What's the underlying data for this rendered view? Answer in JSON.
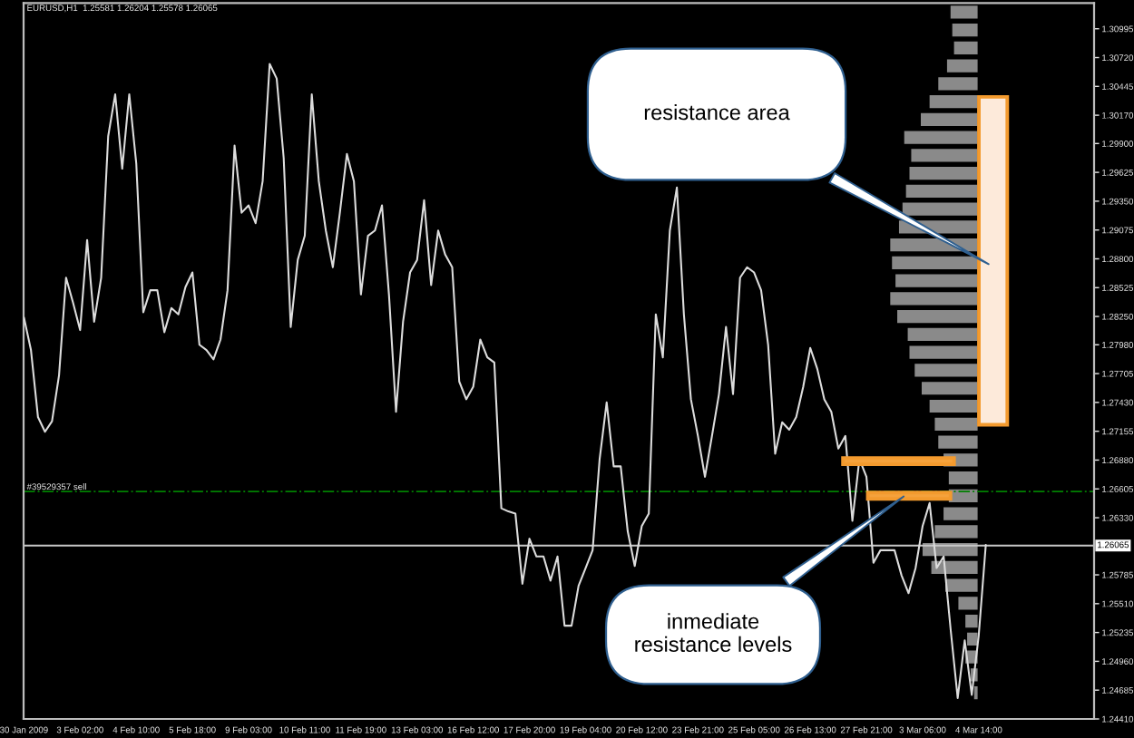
{
  "chart_data": {
    "type": "line",
    "title": "EURUSD,H1  1.25581 1.26204 1.25578 1.26065",
    "categories": [
      "30 Jan 2009",
      null,
      null,
      null,
      null,
      null,
      null,
      null,
      "3 Feb 02:00",
      null,
      null,
      null,
      null,
      null,
      null,
      null,
      "4 Feb 10:00",
      null,
      null,
      null,
      null,
      null,
      null,
      null,
      "5 Feb 18:00",
      null,
      null,
      null,
      null,
      null,
      null,
      null,
      "9 Feb 03:00",
      null,
      null,
      null,
      null,
      null,
      null,
      null,
      "10 Feb 11:00",
      null,
      null,
      null,
      null,
      null,
      null,
      null,
      "11 Feb 19:00",
      null,
      null,
      null,
      null,
      null,
      null,
      null,
      "13 Feb 03:00",
      null,
      null,
      null,
      null,
      null,
      null,
      null,
      "16 Feb 12:00",
      null,
      null,
      null,
      null,
      null,
      null,
      null,
      "17 Feb 20:00",
      null,
      null,
      null,
      null,
      null,
      null,
      null,
      "19 Feb 04:00",
      null,
      null,
      null,
      null,
      null,
      null,
      null,
      "20 Feb 12:00",
      null,
      null,
      null,
      null,
      null,
      null,
      null,
      "23 Feb 21:00",
      null,
      null,
      null,
      null,
      null,
      null,
      null,
      "25 Feb 05:00",
      null,
      null,
      null,
      null,
      null,
      null,
      null,
      "26 Feb 13:00",
      null,
      null,
      null,
      null,
      null,
      null,
      null,
      "27 Feb 21:00",
      null,
      null,
      null,
      null,
      null,
      null,
      null,
      "3 Mar 06:00",
      null,
      null,
      null,
      null,
      null,
      null,
      null,
      "4 Mar 14:00",
      null
    ],
    "series": [
      {
        "color": "#dcdcdc",
        "values": [
          1.2824,
          1.2793,
          1.2729,
          1.2715,
          1.2725,
          1.2769,
          1.2862,
          1.2838,
          1.2812,
          1.2898,
          1.282,
          1.2862,
          1.2997,
          1.3037,
          1.2966,
          1.3037,
          1.2971,
          1.2829,
          1.285,
          1.285,
          1.281,
          1.2833,
          1.2827,
          1.2853,
          1.2867,
          1.2798,
          1.2793,
          1.2784,
          1.2803,
          1.285,
          1.2988,
          1.2924,
          1.2931,
          1.2914,
          1.2954,
          1.3066,
          1.3052,
          1.2976,
          1.2815,
          1.2879,
          1.2902,
          1.3037,
          1.2954,
          1.2907,
          1.2872,
          1.2924,
          1.298,
          1.2954,
          1.2846,
          1.2902,
          1.2907,
          1.2931,
          1.2845,
          1.2734,
          1.282,
          1.2867,
          1.2879,
          1.2936,
          1.2855,
          1.2907,
          1.2884,
          1.2872,
          1.2763,
          1.2746,
          1.2758,
          1.2803,
          1.2786,
          1.2781,
          1.2642,
          1.2639,
          1.2637,
          1.257,
          1.2613,
          1.2596,
          1.2596,
          1.2573,
          1.2596,
          1.253,
          1.253,
          1.2568,
          1.2585,
          1.2602,
          1.2689,
          1.2743,
          1.2682,
          1.2682,
          1.262,
          1.2587,
          1.2625,
          1.2637,
          1.2827,
          1.2786,
          1.2907,
          1.2948,
          1.2827,
          1.2746,
          1.2711,
          1.2672,
          1.2711,
          1.2751,
          1.2815,
          1.2751,
          1.2862,
          1.2872,
          1.2867,
          1.285,
          1.2798,
          1.2694,
          1.2724,
          1.2717,
          1.2729,
          1.2758,
          1.2795,
          1.2775,
          1.2746,
          1.2734,
          1.2699,
          1.2711,
          1.263,
          1.2689,
          1.2672,
          1.259,
          1.2602,
          1.2602,
          1.2602,
          1.2578,
          1.2561,
          1.2585,
          1.2625,
          1.2647,
          1.2585,
          1.2596,
          1.2526,
          1.2461,
          1.2516,
          1.2464,
          1.2521,
          1.2607
        ]
      }
    ],
    "ylim": [
      1.2441,
      1.3124
    ],
    "yticks": [
      {
        "value": 1.30995,
        "label": "1.30995"
      },
      {
        "value": 1.3072,
        "label": "1.30720"
      },
      {
        "value": 1.30445,
        "label": "1.30445"
      },
      {
        "value": 1.3017,
        "label": "1.30170"
      },
      {
        "value": 1.299,
        "label": "1.29900"
      },
      {
        "value": 1.29625,
        "label": "1.29625"
      },
      {
        "value": 1.2935,
        "label": "1.29350"
      },
      {
        "value": 1.29075,
        "label": "1.29075"
      },
      {
        "value": 1.288,
        "label": "1.28800"
      },
      {
        "value": 1.28525,
        "label": "1.28525"
      },
      {
        "value": 1.2825,
        "label": "1.28250"
      },
      {
        "value": 1.2798,
        "label": "1.27980"
      },
      {
        "value": 1.27705,
        "label": "1.27705"
      },
      {
        "value": 1.2743,
        "label": "1.27430"
      },
      {
        "value": 1.27155,
        "label": "1.27155"
      },
      {
        "value": 1.2688,
        "label": "1.26880"
      },
      {
        "value": 1.26605,
        "label": "1.26605"
      },
      {
        "value": 1.2633,
        "label": "1.26330"
      },
      {
        "value": 1.25785,
        "label": "1.25785"
      },
      {
        "value": 1.2551,
        "label": "1.25510"
      },
      {
        "value": 1.25235,
        "label": "1.25235"
      },
      {
        "value": 1.2496,
        "label": "1.24960"
      },
      {
        "value": 1.24685,
        "label": "1.24685"
      },
      {
        "value": 1.2441,
        "label": "1.24410"
      }
    ],
    "ref_lines": [
      {
        "axis": "y",
        "value": 1.26065,
        "label": "1.26065",
        "color": "#c8c8c8",
        "line_style": "solid"
      },
      {
        "axis": "y",
        "value": 1.2658,
        "label": "#39529357 sell",
        "color": "#008000",
        "line_style": "dashdot"
      }
    ],
    "bands": [
      {
        "axis": "y",
        "from": 1.2684,
        "to": 1.269,
        "color": "#f5a23c"
      },
      {
        "axis": "y",
        "from": 1.2651,
        "to": 1.2657,
        "color": "#f5a23c"
      }
    ],
    "annotations": [
      "resistance area",
      "inmediate\nresistance levels"
    ]
  }
}
